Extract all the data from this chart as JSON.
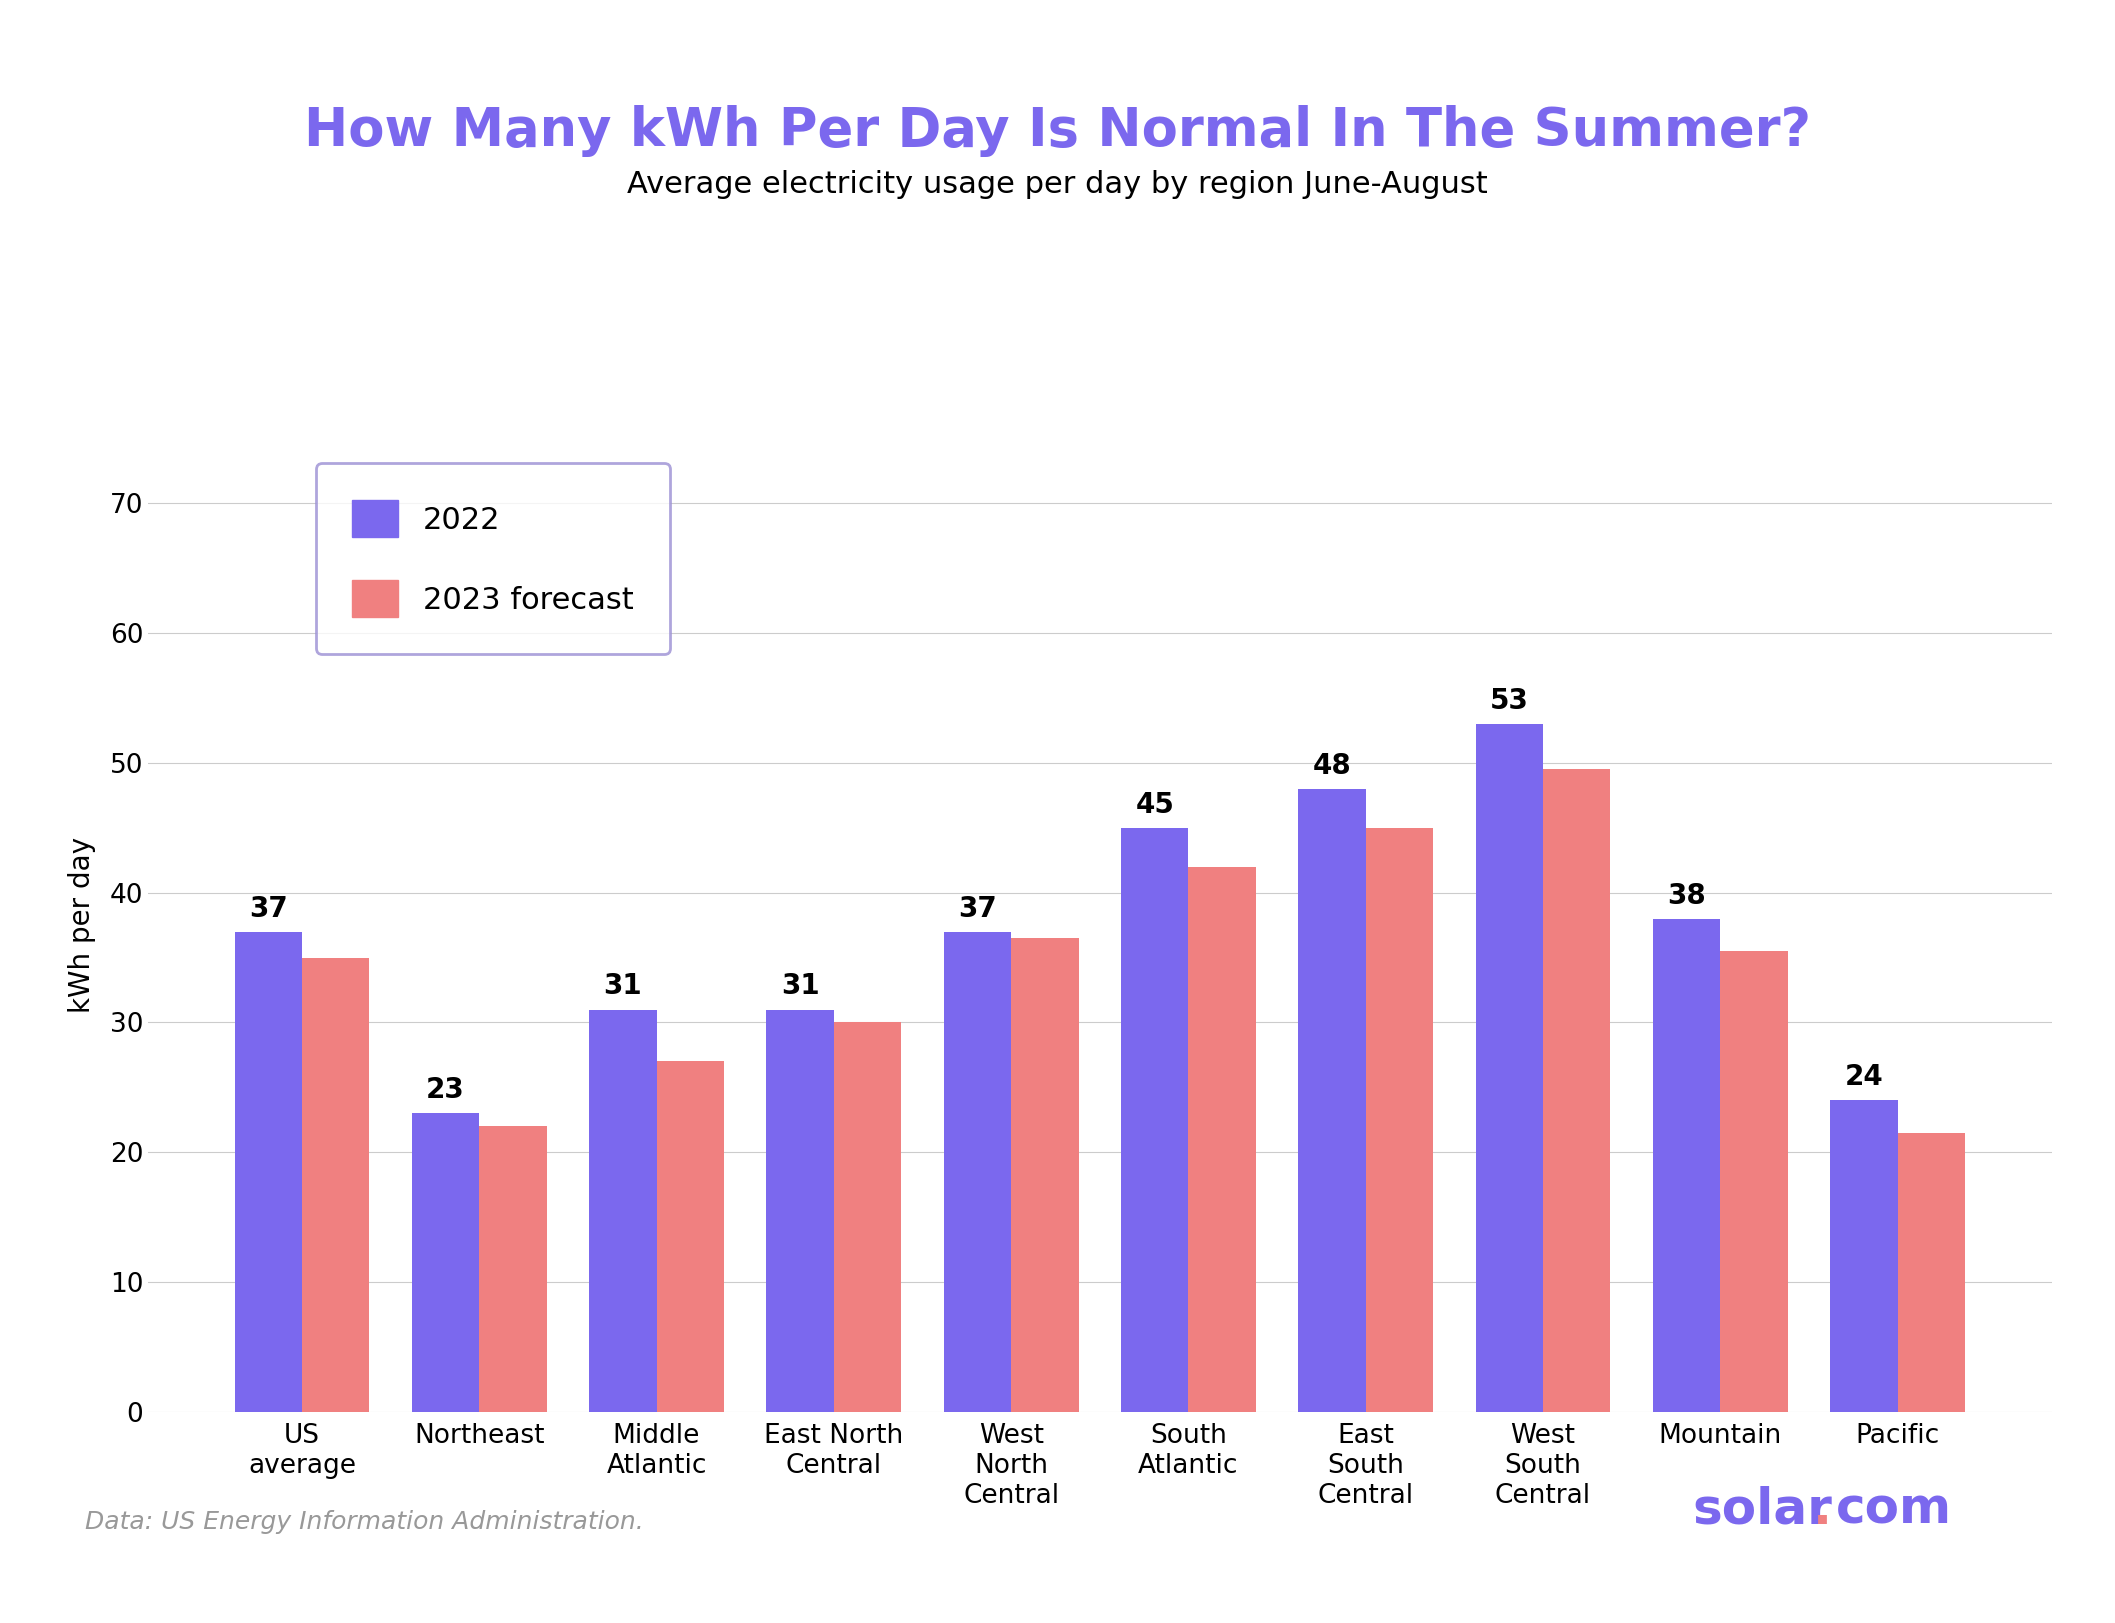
{
  "title": "How Many kWh Per Day Is Normal In The Summer?",
  "subtitle": "Average electricity usage per day by region June-August",
  "ylabel": "kWh per day",
  "categories": [
    "US\naverage",
    "Northeast",
    "Middle\nAtlantic",
    "East North\nCentral",
    "West\nNorth\nCentral",
    "South\nAtlantic",
    "East\nSouth\nCentral",
    "West\nSouth\nCentral",
    "Mountain",
    "Pacific"
  ],
  "values_2022": [
    37,
    23,
    31,
    31,
    37,
    45,
    48,
    53,
    38,
    24
  ],
  "values_2023": [
    35,
    22,
    27,
    30,
    36.5,
    42,
    45,
    49.5,
    35.5,
    21.5
  ],
  "color_2022": "#7B68EE",
  "color_2023": "#F08080",
  "legend_labels": [
    "2022",
    "2023 forecast"
  ],
  "ylim": [
    0,
    75
  ],
  "yticks": [
    0,
    10,
    20,
    30,
    40,
    50,
    60,
    70
  ],
  "title_color": "#7B68EE",
  "subtitle_color": "#000000",
  "footer_text": "Data: US Energy Information Administration.",
  "footer_color": "#999999",
  "brand_color": "#7B68EE",
  "brand_dot_color": "#F08080",
  "background_color": "#ffffff",
  "border_color": "#9B8FD4",
  "bar_width": 0.38,
  "title_fontsize": 38,
  "subtitle_fontsize": 22,
  "axis_label_fontsize": 20,
  "tick_fontsize": 19,
  "value_label_fontsize": 20,
  "legend_fontsize": 22,
  "footer_fontsize": 18,
  "brand_fontsize": 36
}
